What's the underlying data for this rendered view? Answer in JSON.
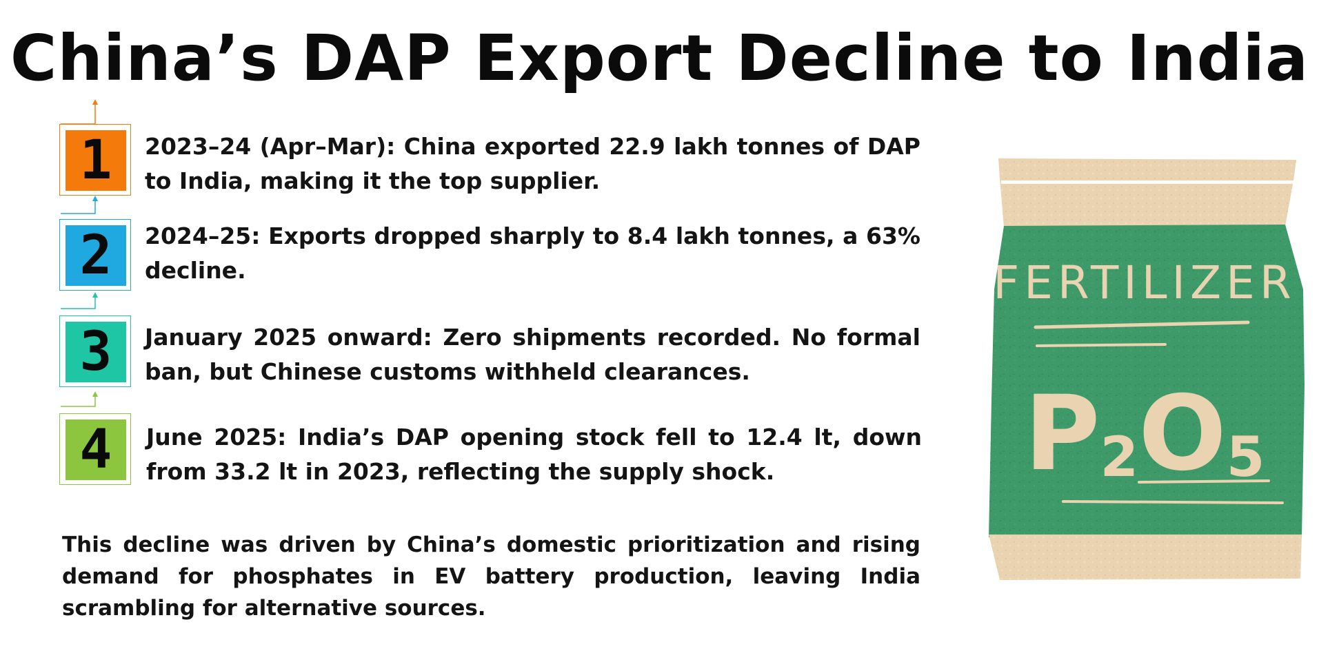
{
  "title": "China’s DAP Export Decline to India",
  "steps": [
    {
      "number": "1",
      "color": "#f47a0c",
      "text": "2023–24 (Apr–Mar): China exported 22.9 lakh tonnes of DAP to India, making it the top supplier."
    },
    {
      "number": "2",
      "color": "#1fa9e0",
      "text": "2024–25: Exports dropped sharply to 8.4 lakh tonnes, a 63% decline."
    },
    {
      "number": "3",
      "color": "#1ec6a6",
      "text": "January 2025 onward: Zero shipments recorded. No formal ban, but Chinese customs withheld clearances."
    },
    {
      "number": "4",
      "color": "#8cc63f",
      "text": "June 2025: India’s DAP opening stock fell to 12.4 lt, down from 33.2 lt in 2023, reflecting the supply shock."
    }
  ],
  "summary": "This decline was driven by China’s domestic prioritization and rising demand for phosphates in EV battery production, leaving India scrambling for alternative sources.",
  "bag": {
    "label": "FERTILIZER",
    "formula_p": "P",
    "formula_2": "2",
    "formula_o": "O",
    "formula_5": "5",
    "green": "#3f9a6a",
    "beige": "#e9d3b0"
  }
}
